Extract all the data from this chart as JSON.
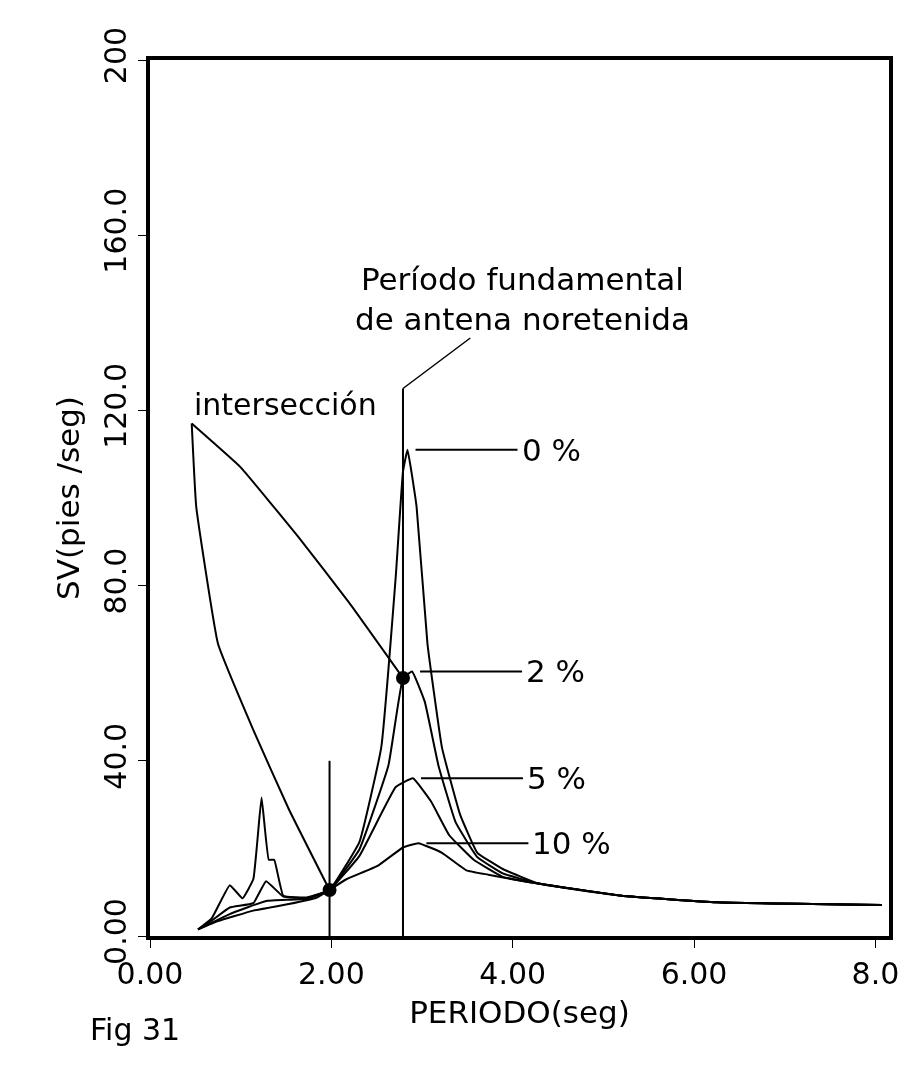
{
  "chart_data": {
    "type": "line",
    "xlabel": "PERIODO(seg)",
    "ylabel": "SV(pies /seg)",
    "xlim": [
      0,
      8.15
    ],
    "ylim": [
      0,
      200
    ],
    "xticks": [
      {
        "value": 0,
        "label": "0.00"
      },
      {
        "value": 2,
        "label": "2.00"
      },
      {
        "value": 4,
        "label": "4.00"
      },
      {
        "value": 6,
        "label": "6.00"
      },
      {
        "value": 8,
        "label": "8.0"
      }
    ],
    "yticks": [
      {
        "value": 0,
        "label": "0.00"
      },
      {
        "value": 40,
        "label": "40.0"
      },
      {
        "value": 80,
        "label": "80.0"
      },
      {
        "value": 120,
        "label": "120.0"
      },
      {
        "value": 160,
        "label": "160.0"
      },
      {
        "value": 200,
        "label": "200"
      }
    ],
    "legend": "center",
    "marker": "none",
    "line_style": "solid",
    "series": [
      {
        "name": "0 %",
        "color": "#000000",
        "x": [
          0.53,
          0.68,
          0.88,
          1.02,
          1.14,
          1.23,
          1.31,
          1.37,
          1.47,
          1.73,
          1.98,
          2.31,
          2.55,
          2.71,
          2.79,
          2.84,
          2.94,
          3.06,
          3.22,
          3.42,
          3.61,
          3.89,
          4.28,
          5.2,
          6.25,
          8.07
        ],
        "values": [
          1.5,
          4,
          11.6,
          8.6,
          13,
          31.6,
          17.4,
          17.4,
          9.2,
          8.8,
          10.5,
          21.5,
          43,
          82,
          106,
          111,
          98,
          66.7,
          43,
          27.7,
          19,
          15.3,
          12,
          9.2,
          7.7,
          7.1
        ]
      },
      {
        "name": "2 %",
        "color": "#000000",
        "x": [
          0.53,
          0.68,
          0.88,
          1.14,
          1.28,
          1.47,
          1.73,
          1.98,
          2.31,
          2.63,
          2.79,
          2.89,
          3.03,
          3.18,
          3.37,
          3.61,
          3.89,
          4.28,
          5.2,
          6.25,
          8.07
        ],
        "values": [
          1.5,
          3.5,
          6.5,
          7.5,
          12.5,
          9,
          8.7,
          10.5,
          19.8,
          39,
          58.9,
          60.4,
          53.5,
          39,
          26,
          18,
          14.3,
          12,
          9.2,
          7.7,
          7.1
        ]
      },
      {
        "name": "5 %",
        "color": "#000000",
        "x": [
          0.53,
          0.88,
          1.28,
          1.73,
          1.98,
          2.31,
          2.71,
          2.9,
          3.1,
          3.3,
          3.57,
          3.89,
          4.28,
          5.2,
          6.25,
          8.07
        ],
        "values": [
          1.5,
          5,
          8,
          8.5,
          10.5,
          18.3,
          34,
          36,
          30.7,
          23,
          17.4,
          13.5,
          12,
          9.2,
          7.7,
          7.1
        ]
      },
      {
        "name": "10 %",
        "color": "#000000",
        "x": [
          0.53,
          0.75,
          1.14,
          1.53,
          1.84,
          1.98,
          2.16,
          2.51,
          2.79,
          2.96,
          3.22,
          3.49,
          3.73,
          4.06,
          4.28,
          5.2,
          6.25,
          8.07
        ],
        "values": [
          1.5,
          3.4,
          5.8,
          7.3,
          8.8,
          10.5,
          12.9,
          16,
          20.2,
          21.2,
          19,
          15,
          14,
          12.7,
          12,
          9.2,
          7.7,
          7.1
        ]
      },
      {
        "color": "#000000",
        "x": [
          0.46,
          1.0,
          1.64,
          2.2,
          2.79
        ],
        "values": [
          117,
          107,
          91,
          76,
          58.9
        ]
      },
      {
        "color": "#000000",
        "x": [
          0.46,
          0.51,
          0.75,
          1.14,
          1.53,
          1.98
        ],
        "values": [
          117,
          98,
          66.7,
          47,
          29,
          10.5
        ]
      },
      {
        "color": "#000000",
        "x": [
          1.98,
          1.98
        ],
        "values": [
          0,
          40
        ]
      },
      {
        "color": "#000000",
        "x": [
          2.79,
          2.79
        ],
        "values": [
          0,
          125
        ]
      },
      {
        "type": "scatter",
        "marker": "circle",
        "color": "#000000",
        "x": [
          1.98,
          2.79
        ],
        "values": [
          10.5,
          58.9
        ]
      }
    ],
    "annotations": [
      {
        "text": "Período fundamental\nde antena noretenida",
        "x": 2.79,
        "y": 125
      },
      {
        "text": "intersección",
        "x": 0.46,
        "y": 117
      },
      "Fig 31"
    ]
  }
}
